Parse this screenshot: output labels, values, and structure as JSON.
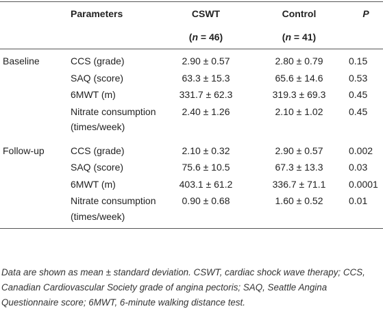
{
  "header": {
    "parameters": "Parameters",
    "cswt": "CSWT",
    "cswt_n": [
      "(",
      "n",
      " = 46)"
    ],
    "control": "Control",
    "control_n": [
      "(",
      "n",
      " = 41)"
    ],
    "p": "P"
  },
  "groups": [
    {
      "label": "Baseline",
      "rows": [
        [
          "CCS (grade)",
          "2.90 ± 0.57",
          "2.80 ± 0.79",
          "0.15"
        ],
        [
          "SAQ (score)",
          "63.3 ± 15.3",
          "65.6 ± 14.6",
          "0.53"
        ],
        [
          "6MWT (m)",
          "331.7 ± 62.3",
          "319.3 ± 69.3",
          "0.45"
        ],
        [
          "Nitrate consumption (times/week)",
          "2.40 ± 1.26",
          "2.10 ± 1.02",
          "0.45"
        ]
      ]
    },
    {
      "label": "Follow-up",
      "rows": [
        [
          "CCS (grade)",
          "2.10 ± 0.32",
          "2.90 ± 0.57",
          "0.002"
        ],
        [
          "SAQ (score)",
          "75.6 ± 10.5",
          "67.3 ± 13.3",
          "0.03"
        ],
        [
          "6MWT (m)",
          "403.1 ± 61.2",
          "336.7 ± 71.1",
          "0.0001"
        ],
        [
          "Nitrate consumption (times/week)",
          "0.90 ± 0.68",
          "1.60 ± 0.52",
          "0.01"
        ]
      ]
    }
  ],
  "footnote": "Data are shown as mean ± standard deviation. CSWT, cardiac shock wave therapy; CCS, Canadian Cardiovascular Society grade of angina pectoris; SAQ, Seattle Angina Questionnaire score; 6MWT, 6-minute walking distance test."
}
